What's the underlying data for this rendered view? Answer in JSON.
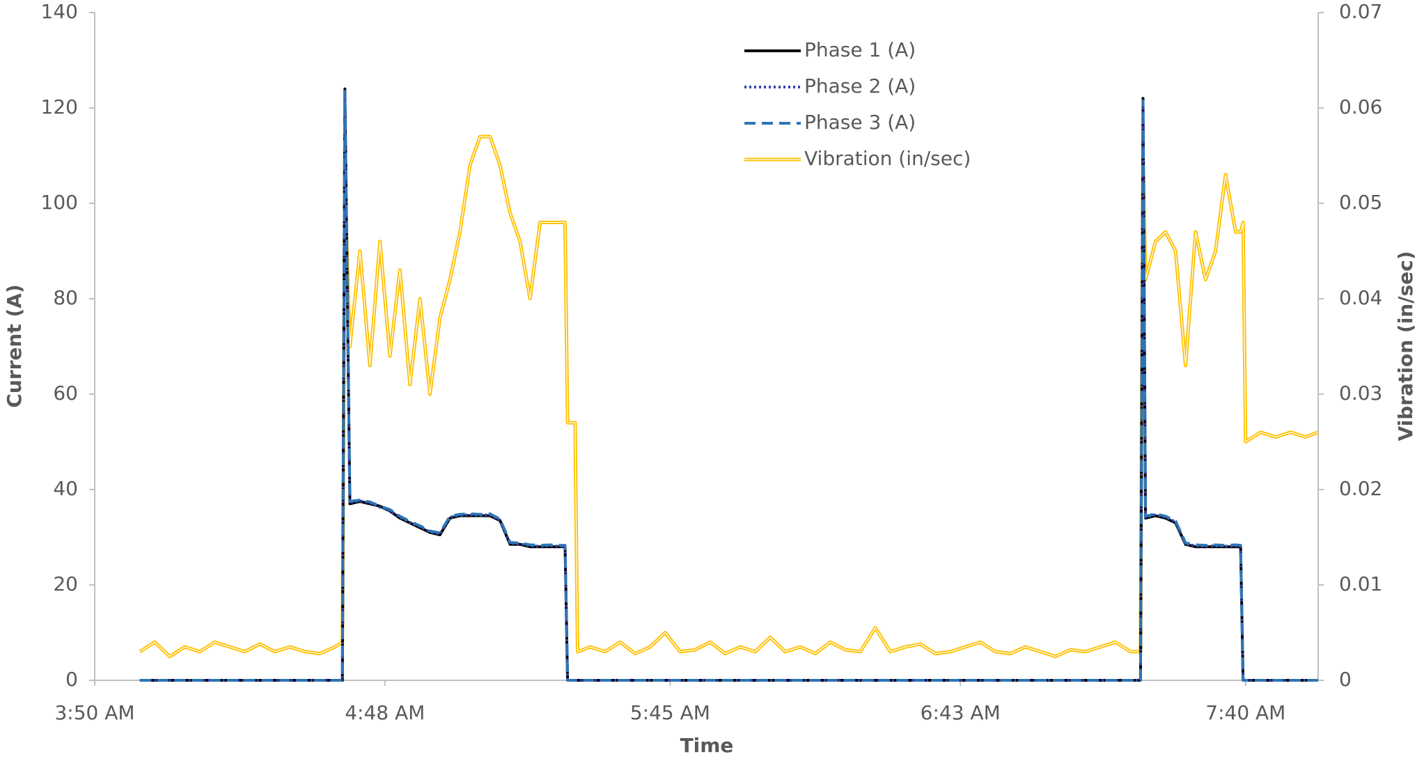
{
  "chart_data": {
    "type": "line",
    "xlabel": "Time",
    "ylabel": "Current (A)",
    "y2label": "Vibration (in/sec)",
    "x": [
      239,
      242,
      245,
      248,
      251,
      254,
      257,
      260,
      263,
      266,
      269,
      272,
      275,
      278,
      279.5,
      280,
      281,
      283,
      285,
      287,
      289,
      291,
      293,
      295,
      297,
      299,
      301,
      303,
      305,
      307,
      309,
      311,
      313,
      315,
      317,
      319,
      321,
      323,
      324,
      324.5,
      326,
      326.5,
      329,
      332,
      335,
      338,
      341,
      344,
      347,
      350,
      353,
      356,
      359,
      362,
      365,
      368,
      371,
      374,
      377,
      380,
      383,
      386,
      389,
      392,
      395,
      398,
      401,
      404,
      407,
      410,
      413,
      416,
      419,
      422,
      425,
      428,
      431,
      434,
      437,
      439,
      439.5,
      440,
      442,
      444,
      446,
      448,
      450,
      452,
      454,
      456,
      458,
      459,
      459.5,
      460,
      463,
      466,
      469,
      472,
      474.5
    ],
    "series": [
      {
        "name": "Phase 1 (A)",
        "color": "#000000",
        "dash": "solid",
        "values": [
          0,
          0,
          0,
          0,
          0,
          0,
          0,
          0,
          0,
          0,
          0,
          0,
          0,
          0,
          0,
          124,
          37,
          37.5,
          37,
          36.5,
          35.5,
          34,
          33,
          32,
          31,
          30.5,
          34,
          34.5,
          34.5,
          34.5,
          34.5,
          33.5,
          28.5,
          28.5,
          28,
          28,
          28,
          28,
          28,
          0,
          0,
          0,
          0,
          0,
          0,
          0,
          0,
          0,
          0,
          0,
          0,
          0,
          0,
          0,
          0,
          0,
          0,
          0,
          0,
          0,
          0,
          0,
          0,
          0,
          0,
          0,
          0,
          0,
          0,
          0,
          0,
          0,
          0,
          0,
          0,
          0,
          0,
          0,
          0,
          0,
          122,
          34,
          34.5,
          34,
          33,
          28.5,
          28,
          28,
          28,
          28,
          28,
          28,
          0,
          0,
          0,
          0,
          0,
          0,
          0
        ]
      },
      {
        "name": "Phase 2 (A)",
        "color": "#3344aa",
        "dash": "dotted",
        "values": [
          0,
          0,
          0,
          0,
          0,
          0,
          0,
          0,
          0,
          0,
          0,
          0,
          0,
          0,
          0,
          123,
          37.3,
          37.6,
          37.2,
          36.3,
          35.6,
          34.2,
          33.1,
          32.2,
          31.1,
          30.7,
          34.2,
          34.6,
          34.7,
          34.6,
          34.7,
          33.6,
          28.7,
          28.6,
          28.2,
          28.1,
          28.2,
          28.1,
          28.1,
          0,
          0,
          0,
          0,
          0,
          0,
          0,
          0,
          0,
          0,
          0,
          0,
          0,
          0,
          0,
          0,
          0,
          0,
          0,
          0,
          0,
          0,
          0,
          0,
          0,
          0,
          0,
          0,
          0,
          0,
          0,
          0,
          0,
          0,
          0,
          0,
          0,
          0,
          0,
          0,
          0,
          121,
          34.2,
          34.7,
          34.2,
          33.2,
          28.6,
          28.2,
          28.1,
          28.2,
          28.1,
          28.2,
          28.1,
          0,
          0,
          0,
          0,
          0,
          0,
          0
        ]
      },
      {
        "name": "Phase 3 (A)",
        "color": "#2e75b6",
        "dash": "dashed",
        "values": [
          0,
          0,
          0,
          0,
          0,
          0,
          0,
          0,
          0,
          0,
          0,
          0,
          0,
          0,
          0,
          123.5,
          37.5,
          37.8,
          37.4,
          36.5,
          35.8,
          34.4,
          33.3,
          32.4,
          31.3,
          30.9,
          34.4,
          34.8,
          34.9,
          34.8,
          34.9,
          33.8,
          28.9,
          28.8,
          28.4,
          28.3,
          28.4,
          28.3,
          28.3,
          0,
          0,
          0,
          0,
          0,
          0,
          0,
          0,
          0,
          0,
          0,
          0,
          0,
          0,
          0,
          0,
          0,
          0,
          0,
          0,
          0,
          0,
          0,
          0,
          0,
          0,
          0,
          0,
          0,
          0,
          0,
          0,
          0,
          0,
          0,
          0,
          0,
          0,
          0,
          0,
          0,
          121.5,
          34.4,
          34.9,
          34.4,
          33.4,
          28.8,
          28.4,
          28.3,
          28.4,
          28.3,
          28.4,
          28.3,
          0,
          0,
          0,
          0,
          0,
          0,
          0
        ]
      },
      {
        "name": "Vibration (in/sec)",
        "color": "#ffc000",
        "dash": "double",
        "axis": "y2",
        "values": [
          0.003,
          0.004,
          0.0025,
          0.0035,
          0.003,
          0.004,
          0.0035,
          0.003,
          0.0038,
          0.003,
          0.0035,
          0.003,
          0.0028,
          0.0035,
          0.004,
          0.052,
          0.035,
          0.045,
          0.033,
          0.046,
          0.034,
          0.043,
          0.031,
          0.04,
          0.03,
          0.038,
          0.042,
          0.047,
          0.054,
          0.057,
          0.057,
          0.054,
          0.049,
          0.046,
          0.04,
          0.048,
          0.048,
          0.048,
          0.048,
          0.027,
          0.027,
          0.003,
          0.0035,
          0.003,
          0.004,
          0.0028,
          0.0035,
          0.005,
          0.003,
          0.0032,
          0.004,
          0.0028,
          0.0035,
          0.003,
          0.0045,
          0.003,
          0.0035,
          0.0028,
          0.004,
          0.0032,
          0.003,
          0.0055,
          0.003,
          0.0035,
          0.0038,
          0.0028,
          0.003,
          0.0035,
          0.004,
          0.003,
          0.0028,
          0.0035,
          0.003,
          0.0025,
          0.0032,
          0.003,
          0.0035,
          0.004,
          0.003,
          0.003,
          0.055,
          0.042,
          0.046,
          0.047,
          0.045,
          0.033,
          0.047,
          0.042,
          0.045,
          0.053,
          0.047,
          0.047,
          0.048,
          0.025,
          0.026,
          0.0255,
          0.026,
          0.0255,
          0.026
        ]
      }
    ],
    "xlim": [
      230,
      474.5
    ],
    "xticks": [
      {
        "value": 230,
        "label": "3:50 AM"
      },
      {
        "value": 288,
        "label": "4:48 AM"
      },
      {
        "value": 345,
        "label": "5:45 AM"
      },
      {
        "value": 403,
        "label": "6:43 AM"
      },
      {
        "value": 460,
        "label": "7:40 AM"
      }
    ],
    "ylim": [
      0,
      140
    ],
    "yticks": [
      0,
      20,
      40,
      60,
      80,
      100,
      120,
      140
    ],
    "y2lim": [
      0,
      0.07
    ],
    "y2ticks": [
      0,
      0.01,
      0.02,
      0.03,
      0.04,
      0.05,
      0.06,
      0.07
    ],
    "grid": false,
    "legend": "top"
  }
}
